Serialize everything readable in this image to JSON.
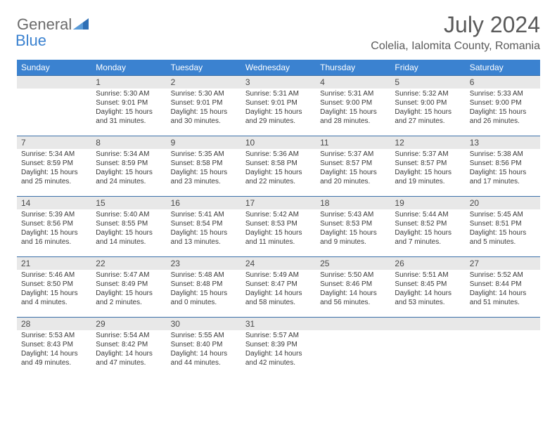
{
  "logo": {
    "word1": "General",
    "word2": "Blue"
  },
  "title": "July 2024",
  "subtitle": "Colelia, Ialomita County, Romania",
  "colors": {
    "header_bg": "#3b82d0",
    "header_text": "#ffffff",
    "daynum_bg": "#e8e8e8",
    "daynum_border": "#3b6fa8",
    "body_text": "#3a3a3a",
    "title_text": "#5a5a5a",
    "logo_gray": "#6b6b6b",
    "logo_blue": "#3b82d0"
  },
  "weekdays": [
    "Sunday",
    "Monday",
    "Tuesday",
    "Wednesday",
    "Thursday",
    "Friday",
    "Saturday"
  ],
  "weeks": [
    [
      null,
      {
        "n": "1",
        "sr": "5:30 AM",
        "ss": "9:01 PM",
        "dl": "15 hours and 31 minutes."
      },
      {
        "n": "2",
        "sr": "5:30 AM",
        "ss": "9:01 PM",
        "dl": "15 hours and 30 minutes."
      },
      {
        "n": "3",
        "sr": "5:31 AM",
        "ss": "9:01 PM",
        "dl": "15 hours and 29 minutes."
      },
      {
        "n": "4",
        "sr": "5:31 AM",
        "ss": "9:00 PM",
        "dl": "15 hours and 28 minutes."
      },
      {
        "n": "5",
        "sr": "5:32 AM",
        "ss": "9:00 PM",
        "dl": "15 hours and 27 minutes."
      },
      {
        "n": "6",
        "sr": "5:33 AM",
        "ss": "9:00 PM",
        "dl": "15 hours and 26 minutes."
      }
    ],
    [
      {
        "n": "7",
        "sr": "5:34 AM",
        "ss": "8:59 PM",
        "dl": "15 hours and 25 minutes."
      },
      {
        "n": "8",
        "sr": "5:34 AM",
        "ss": "8:59 PM",
        "dl": "15 hours and 24 minutes."
      },
      {
        "n": "9",
        "sr": "5:35 AM",
        "ss": "8:58 PM",
        "dl": "15 hours and 23 minutes."
      },
      {
        "n": "10",
        "sr": "5:36 AM",
        "ss": "8:58 PM",
        "dl": "15 hours and 22 minutes."
      },
      {
        "n": "11",
        "sr": "5:37 AM",
        "ss": "8:57 PM",
        "dl": "15 hours and 20 minutes."
      },
      {
        "n": "12",
        "sr": "5:37 AM",
        "ss": "8:57 PM",
        "dl": "15 hours and 19 minutes."
      },
      {
        "n": "13",
        "sr": "5:38 AM",
        "ss": "8:56 PM",
        "dl": "15 hours and 17 minutes."
      }
    ],
    [
      {
        "n": "14",
        "sr": "5:39 AM",
        "ss": "8:56 PM",
        "dl": "15 hours and 16 minutes."
      },
      {
        "n": "15",
        "sr": "5:40 AM",
        "ss": "8:55 PM",
        "dl": "15 hours and 14 minutes."
      },
      {
        "n": "16",
        "sr": "5:41 AM",
        "ss": "8:54 PM",
        "dl": "15 hours and 13 minutes."
      },
      {
        "n": "17",
        "sr": "5:42 AM",
        "ss": "8:53 PM",
        "dl": "15 hours and 11 minutes."
      },
      {
        "n": "18",
        "sr": "5:43 AM",
        "ss": "8:53 PM",
        "dl": "15 hours and 9 minutes."
      },
      {
        "n": "19",
        "sr": "5:44 AM",
        "ss": "8:52 PM",
        "dl": "15 hours and 7 minutes."
      },
      {
        "n": "20",
        "sr": "5:45 AM",
        "ss": "8:51 PM",
        "dl": "15 hours and 5 minutes."
      }
    ],
    [
      {
        "n": "21",
        "sr": "5:46 AM",
        "ss": "8:50 PM",
        "dl": "15 hours and 4 minutes."
      },
      {
        "n": "22",
        "sr": "5:47 AM",
        "ss": "8:49 PM",
        "dl": "15 hours and 2 minutes."
      },
      {
        "n": "23",
        "sr": "5:48 AM",
        "ss": "8:48 PM",
        "dl": "15 hours and 0 minutes."
      },
      {
        "n": "24",
        "sr": "5:49 AM",
        "ss": "8:47 PM",
        "dl": "14 hours and 58 minutes."
      },
      {
        "n": "25",
        "sr": "5:50 AM",
        "ss": "8:46 PM",
        "dl": "14 hours and 56 minutes."
      },
      {
        "n": "26",
        "sr": "5:51 AM",
        "ss": "8:45 PM",
        "dl": "14 hours and 53 minutes."
      },
      {
        "n": "27",
        "sr": "5:52 AM",
        "ss": "8:44 PM",
        "dl": "14 hours and 51 minutes."
      }
    ],
    [
      {
        "n": "28",
        "sr": "5:53 AM",
        "ss": "8:43 PM",
        "dl": "14 hours and 49 minutes."
      },
      {
        "n": "29",
        "sr": "5:54 AM",
        "ss": "8:42 PM",
        "dl": "14 hours and 47 minutes."
      },
      {
        "n": "30",
        "sr": "5:55 AM",
        "ss": "8:40 PM",
        "dl": "14 hours and 44 minutes."
      },
      {
        "n": "31",
        "sr": "5:57 AM",
        "ss": "8:39 PM",
        "dl": "14 hours and 42 minutes."
      },
      null,
      null,
      null
    ]
  ],
  "labels": {
    "sunrise": "Sunrise: ",
    "sunset": "Sunset: ",
    "daylight": "Daylight: "
  }
}
